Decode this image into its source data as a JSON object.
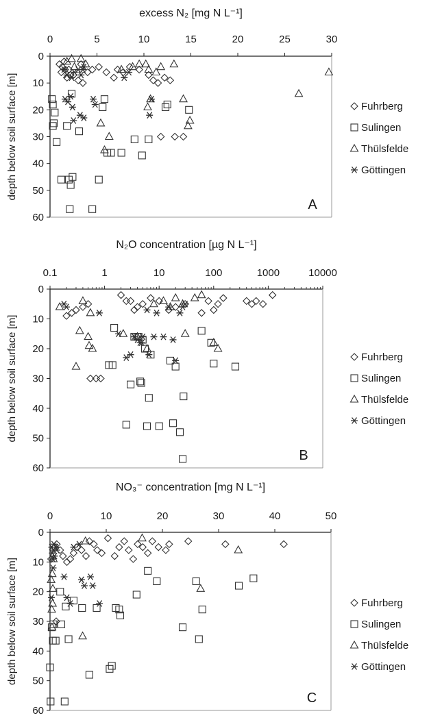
{
  "legend": [
    {
      "name": "Fuhrberg",
      "marker": "diamond"
    },
    {
      "name": "Sulingen",
      "marker": "square"
    },
    {
      "name": "Thülsfelde",
      "marker": "triangle"
    },
    {
      "name": "Göttingen",
      "marker": "asterisk"
    }
  ],
  "chart_data": [
    {
      "type": "scatter",
      "panel_label": "A",
      "title": "excess N₂ [mg N L⁻¹]",
      "ylabel": "depth below soil surface [m]",
      "x_scale": "linear",
      "xlim": [
        0,
        30
      ],
      "ylim": [
        0,
        60
      ],
      "y_inverted": true,
      "x_ticks": [
        "0",
        "5",
        "10",
        "15",
        "20",
        "25",
        "30"
      ],
      "y_ticks": [
        "0",
        "10",
        "20",
        "30",
        "40",
        "50",
        "60"
      ],
      "legend_position": "right",
      "grid": false,
      "series": [
        {
          "name": "Fuhrberg",
          "marker": "diamond",
          "x": [
            1.0,
            1.3,
            1.6,
            1.2,
            2.0,
            2.5,
            3.0,
            3.5,
            4.0,
            4.5,
            5.2,
            6.0,
            6.8,
            7.2,
            7.8,
            8.5,
            9.5,
            10.5,
            11.0,
            11.5,
            12.2,
            12.8,
            1.8,
            3.3,
            1.5,
            2.2,
            11.8,
            13.3,
            14.2
          ],
          "y": [
            3,
            4,
            5,
            6,
            5,
            7,
            9,
            10,
            6,
            5,
            4,
            6,
            8,
            5,
            6,
            4,
            5,
            7,
            9,
            10,
            8,
            9,
            8,
            3,
            2,
            7,
            30,
            30,
            30
          ]
        },
        {
          "name": "Sulingen",
          "marker": "square",
          "x": [
            0.2,
            0.3,
            0.5,
            0.4,
            0.3,
            0.7,
            1.2,
            1.8,
            2.3,
            2.0,
            2.2,
            2.4,
            2.1,
            4.5,
            5.2,
            5.6,
            5.8,
            6.1,
            6.5,
            9.0,
            9.8,
            10.5,
            12.3,
            12.5,
            14.8,
            3.1,
            7.6
          ],
          "y": [
            16,
            18,
            21,
            25,
            26,
            32,
            46,
            26,
            14,
            46,
            48,
            45,
            57,
            57,
            46,
            19,
            16,
            36,
            36,
            31,
            37,
            31,
            19,
            18,
            20,
            28,
            36
          ]
        },
        {
          "name": "Thülsfelde",
          "marker": "triangle",
          "x": [
            1.8,
            2.3,
            2.6,
            3.3,
            3.8,
            7.6,
            8.8,
            9.5,
            10.2,
            10.5,
            11.3,
            11.8,
            13.2,
            14.2,
            14.7,
            14.9,
            26.5,
            29.7,
            5.4,
            5.8,
            6.3,
            10.4,
            10.7
          ],
          "y": [
            2,
            1,
            4,
            1,
            3,
            5,
            4,
            3,
            3,
            5,
            6,
            4,
            3,
            16,
            26,
            24,
            14,
            6,
            25,
            35,
            30,
            19,
            16
          ]
        },
        {
          "name": "Göttingen",
          "marker": "asterisk",
          "x": [
            1.5,
            1.8,
            2.3,
            2.6,
            3.0,
            3.3,
            3.5,
            3.6,
            1.6,
            1.9,
            2.2,
            2.4,
            4.6,
            4.8,
            3.2,
            3.6,
            7.9,
            8.4,
            10.6,
            10.8,
            2.5
          ],
          "y": [
            5,
            7,
            8,
            6,
            5,
            7,
            5,
            4,
            16,
            17,
            15,
            19,
            16,
            18,
            22,
            23,
            8,
            6,
            22,
            16,
            24
          ]
        }
      ]
    },
    {
      "type": "scatter",
      "panel_label": "B",
      "title": "N₂O concentration [µg N L⁻¹]",
      "ylabel": "depth below soil surface [m]",
      "x_scale": "log",
      "xlim": [
        0.1,
        10000
      ],
      "ylim": [
        0,
        60
      ],
      "y_inverted": true,
      "x_ticks": [
        "0.1",
        "1",
        "10",
        "100",
        "1000",
        "10000"
      ],
      "y_ticks": [
        "0",
        "10",
        "20",
        "30",
        "40",
        "50",
        "60"
      ],
      "legend_position": "right",
      "grid": false,
      "series": [
        {
          "name": "Fuhrberg",
          "marker": "diamond",
          "x": [
            0.2,
            0.25,
            0.3,
            0.4,
            0.5,
            2,
            3,
            4,
            5,
            7,
            10,
            15,
            20,
            30,
            60,
            80,
            100,
            120,
            150,
            400,
            500,
            600,
            800,
            1200,
            0.55,
            0.7,
            0.85,
            2.5,
            3.5
          ],
          "y": [
            9,
            8,
            7,
            6,
            5,
            2,
            4,
            6,
            5,
            3,
            4,
            7,
            6,
            5,
            8,
            4,
            7,
            5,
            3,
            4,
            5,
            4,
            5,
            2,
            30,
            30,
            30,
            4,
            7
          ]
        },
        {
          "name": "Sulingen",
          "marker": "square",
          "x": [
            1.2,
            1.4,
            1.5,
            2.5,
            3,
            3.5,
            4,
            4.5,
            4.7,
            5,
            6,
            6.5,
            7,
            10,
            18,
            20,
            24,
            27,
            28,
            60,
            90,
            100,
            250,
            4.2,
            16,
            5.5
          ],
          "y": [
            25.5,
            25.5,
            13,
            45.5,
            32,
            16,
            16,
            31,
            31.5,
            17,
            46,
            36.5,
            22,
            46,
            45,
            26,
            48,
            57,
            36,
            14,
            18,
            25,
            26,
            16,
            24,
            20
          ]
        },
        {
          "name": "Thülsfelde",
          "marker": "triangle",
          "x": [
            0.15,
            0.3,
            0.35,
            0.4,
            0.5,
            0.55,
            0.6,
            2.2,
            4,
            6,
            8,
            12,
            16,
            20,
            27,
            30,
            45,
            60,
            100,
            120,
            0.52
          ],
          "y": [
            6,
            26,
            14,
            4,
            16,
            8,
            20,
            15,
            16,
            20,
            5,
            4,
            6,
            3,
            5,
            15,
            3,
            2,
            18,
            20,
            19
          ]
        },
        {
          "name": "Göttingen",
          "marker": "asterisk",
          "x": [
            0.18,
            0.2,
            0.8,
            1.8,
            2.5,
            3,
            3.5,
            4,
            4.5,
            5,
            6,
            9,
            12,
            15,
            18,
            20,
            24,
            27,
            30,
            6.5,
            4.8,
            8
          ],
          "y": [
            5,
            6,
            8,
            15,
            23,
            22,
            16,
            17,
            18,
            16,
            7,
            8,
            16,
            6,
            17,
            24,
            8,
            6,
            5,
            22,
            18,
            16
          ]
        }
      ]
    },
    {
      "type": "scatter",
      "panel_label": "C",
      "title": "NO₃⁻ concentration [mg N L⁻¹]",
      "ylabel": "depth below soil surface [m]",
      "x_scale": "linear",
      "xlim": [
        0,
        50
      ],
      "ylim": [
        0,
        60
      ],
      "y_inverted": true,
      "x_ticks": [
        "0",
        "10",
        "20",
        "30",
        "40",
        "50"
      ],
      "y_ticks": [
        "0",
        "10",
        "20",
        "30",
        "40",
        "50",
        "60"
      ],
      "legend_position": "right",
      "grid": false,
      "series": [
        {
          "name": "Fuhrberg",
          "marker": "diamond",
          "x": [
            0.8,
            1.2,
            1.8,
            2.3,
            3.0,
            3.6,
            4.2,
            4.8,
            5.6,
            6.4,
            7.0,
            7.8,
            8.4,
            9.2,
            10.3,
            11.5,
            12.3,
            13.2,
            14.0,
            14.8,
            15.6,
            16.5,
            17.4,
            18.2,
            19.3,
            20.6,
            21.2,
            24.6,
            31.2,
            41.6,
            1.1,
            0.2
          ],
          "y": [
            5,
            4,
            6,
            8,
            10,
            9,
            7,
            5,
            6,
            8,
            3,
            4,
            6,
            7,
            2,
            8,
            5,
            3,
            6,
            9,
            4,
            5,
            7,
            3,
            5,
            6,
            4,
            3,
            4,
            4,
            30,
            9
          ]
        },
        {
          "name": "Sulingen",
          "marker": "square",
          "x": [
            0.0,
            0.1,
            0.3,
            0.5,
            0.6,
            1.0,
            1.8,
            2.6,
            2.8,
            3.3,
            4.2,
            5.7,
            7.0,
            8.3,
            10.6,
            11.0,
            11.7,
            12.3,
            12.5,
            15.4,
            17.4,
            19.0,
            23.6,
            26.0,
            26.5,
            27.1,
            33.6,
            36.2,
            2.0
          ],
          "y": [
            45.5,
            57,
            32,
            36.5,
            31,
            36.5,
            20,
            57,
            25,
            36,
            23,
            25.5,
            48,
            25.5,
            46,
            45,
            25.5,
            26,
            28,
            21,
            13,
            16.5,
            32,
            16.5,
            36,
            26,
            18,
            15.5,
            31
          ]
        },
        {
          "name": "Thülsfelde",
          "marker": "triangle",
          "x": [
            0.2,
            0.3,
            0.4,
            0.5,
            0.6,
            5.8,
            6.3,
            16.4,
            26.8,
            33.5,
            0.45,
            0.35
          ],
          "y": [
            16,
            26,
            14,
            19,
            9,
            35,
            3,
            2,
            19,
            6,
            24,
            32
          ]
        },
        {
          "name": "Göttingen",
          "marker": "asterisk",
          "x": [
            0.3,
            0.4,
            0.5,
            0.6,
            0.7,
            0.8,
            1.0,
            1.2,
            2.5,
            3.0,
            3.6,
            4.2,
            5.2,
            5.6,
            6.1,
            7.2,
            7.6,
            8.8,
            0.25,
            0.55
          ],
          "y": [
            5,
            7,
            9,
            6,
            4,
            8,
            5,
            6,
            15,
            22,
            24,
            5,
            4,
            16,
            18,
            15,
            18,
            24,
            22,
            12
          ]
        }
      ]
    }
  ]
}
